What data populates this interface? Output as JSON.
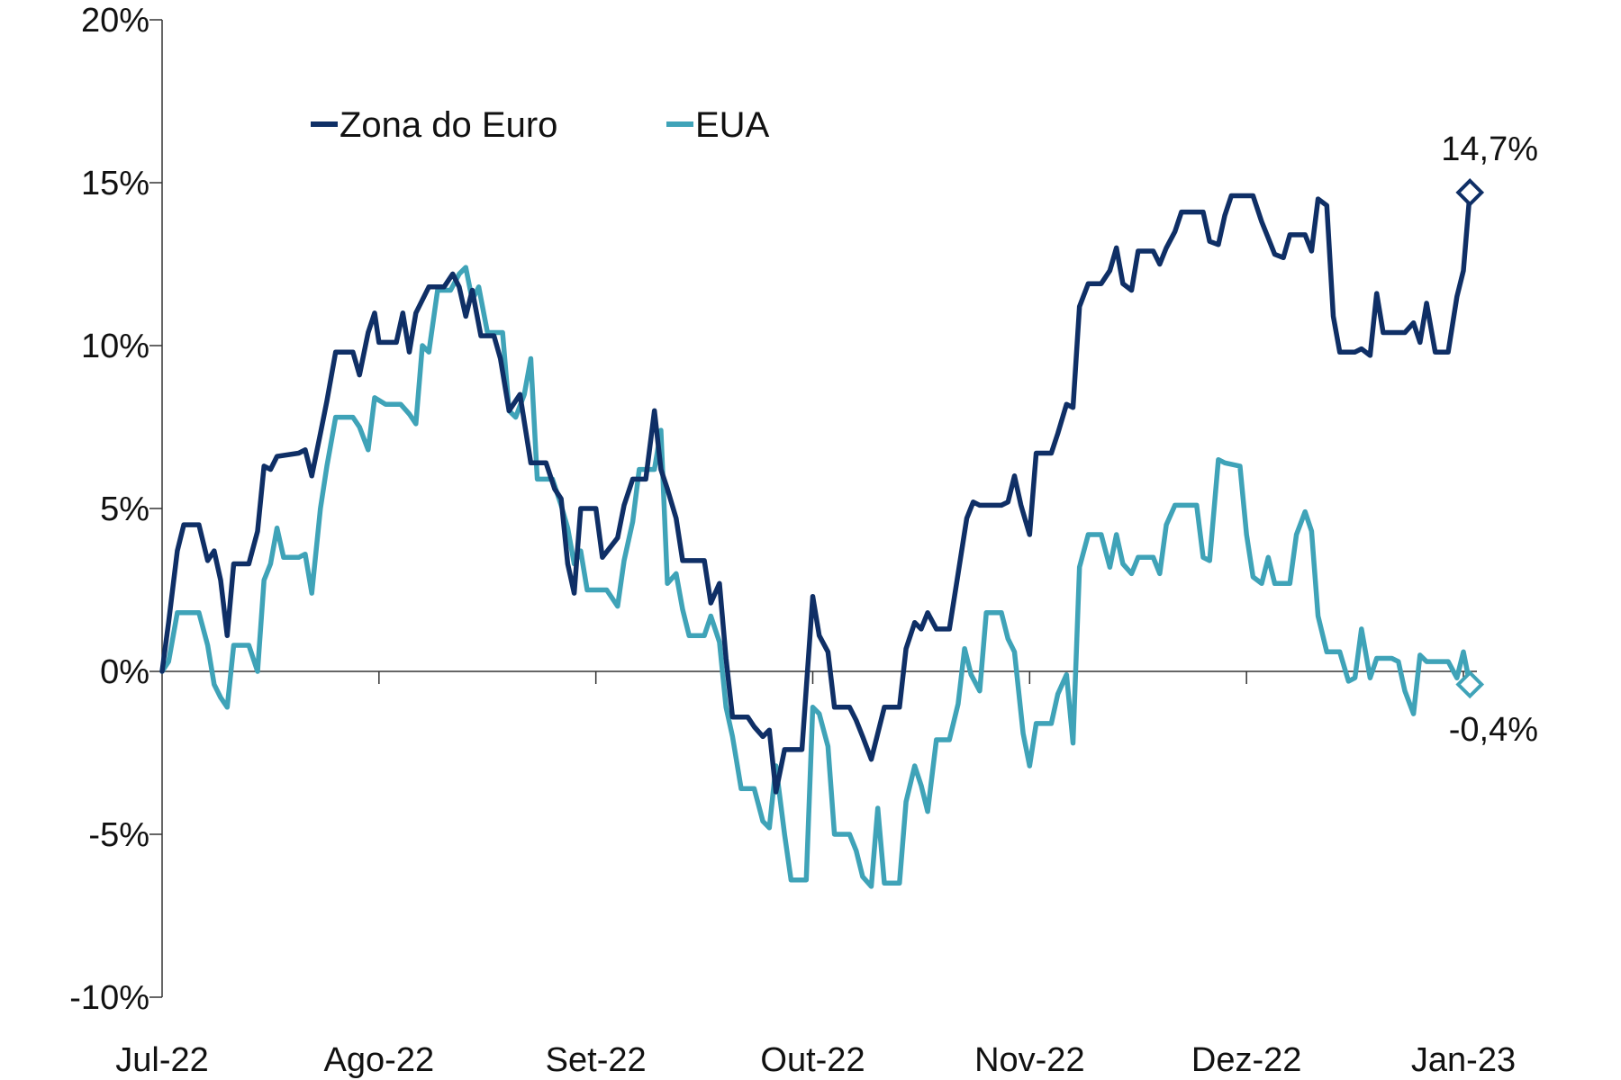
{
  "chart_data": {
    "type": "line",
    "title": "",
    "xlabel": "",
    "ylabel": "",
    "ylim": [
      -10,
      20
    ],
    "yticks": [
      20,
      15,
      10,
      5,
      0,
      -5,
      -10
    ],
    "ytick_labels": [
      "20%",
      "15%",
      "10%",
      "5%",
      "0%",
      "-5%",
      "-10%"
    ],
    "xtick_labels": [
      "Jul-22",
      "Ago-22",
      "Set-22",
      "Out-22",
      "Nov-22",
      "Dez-22",
      "Jan-23"
    ],
    "xtick_positions": [
      0,
      1,
      2,
      3,
      4,
      5,
      6
    ],
    "xlim": [
      0,
      6.25
    ],
    "grid": false,
    "legend_position": "top-left",
    "series": [
      {
        "name": "Zona do Euro",
        "color": "#0f2f66",
        "end_label": "14,7%",
        "points": [
          [
            0,
            0
          ],
          [
            0.03,
            1.5
          ],
          [
            0.07,
            3.7
          ],
          [
            0.1,
            4.5
          ],
          [
            0.17,
            4.5
          ],
          [
            0.21,
            3.4
          ],
          [
            0.24,
            3.7
          ],
          [
            0.27,
            2.8
          ],
          [
            0.3,
            1.1
          ],
          [
            0.33,
            3.3
          ],
          [
            0.4,
            3.3
          ],
          [
            0.44,
            4.3
          ],
          [
            0.47,
            6.3
          ],
          [
            0.5,
            6.2
          ],
          [
            0.53,
            6.6
          ],
          [
            0.63,
            6.7
          ],
          [
            0.66,
            6.8
          ],
          [
            0.69,
            6.0
          ],
          [
            0.73,
            7.3
          ],
          [
            0.76,
            8.3
          ],
          [
            0.8,
            9.8
          ],
          [
            0.88,
            9.8
          ],
          [
            0.91,
            9.1
          ],
          [
            0.95,
            10.4
          ],
          [
            0.98,
            11.0
          ],
          [
            1.0,
            10.1
          ],
          [
            1.08,
            10.1
          ],
          [
            1.11,
            11.0
          ],
          [
            1.14,
            9.8
          ],
          [
            1.17,
            11.0
          ],
          [
            1.23,
            11.8
          ],
          [
            1.3,
            11.8
          ],
          [
            1.34,
            12.2
          ],
          [
            1.37,
            11.8
          ],
          [
            1.4,
            10.9
          ],
          [
            1.43,
            11.7
          ],
          [
            1.47,
            10.3
          ],
          [
            1.53,
            10.3
          ],
          [
            1.56,
            9.6
          ],
          [
            1.6,
            8.0
          ],
          [
            1.65,
            8.5
          ],
          [
            1.7,
            6.4
          ],
          [
            1.77,
            6.4
          ],
          [
            1.81,
            5.6
          ],
          [
            1.84,
            5.3
          ],
          [
            1.87,
            3.3
          ],
          [
            1.9,
            2.4
          ],
          [
            1.93,
            5.0
          ],
          [
            2.0,
            5.0
          ],
          [
            2.03,
            3.5
          ],
          [
            2.1,
            4.1
          ],
          [
            2.13,
            5.1
          ],
          [
            2.17,
            5.9
          ],
          [
            2.23,
            5.9
          ],
          [
            2.27,
            8.0
          ],
          [
            2.3,
            6.2
          ],
          [
            2.33,
            5.6
          ],
          [
            2.37,
            4.7
          ],
          [
            2.4,
            3.4
          ],
          [
            2.5,
            3.4
          ],
          [
            2.53,
            2.1
          ],
          [
            2.57,
            2.7
          ],
          [
            2.6,
            0.4
          ],
          [
            2.63,
            -1.4
          ],
          [
            2.7,
            -1.4
          ],
          [
            2.73,
            -1.7
          ],
          [
            2.77,
            -2.0
          ],
          [
            2.8,
            -1.8
          ],
          [
            2.83,
            -3.7
          ],
          [
            2.87,
            -2.4
          ],
          [
            2.95,
            -2.4
          ],
          [
            3.0,
            2.3
          ],
          [
            3.03,
            1.1
          ],
          [
            3.07,
            0.6
          ],
          [
            3.1,
            -1.1
          ],
          [
            3.17,
            -1.1
          ],
          [
            3.2,
            -1.5
          ],
          [
            3.23,
            -2.0
          ],
          [
            3.27,
            -2.7
          ],
          [
            3.33,
            -1.1
          ],
          [
            3.4,
            -1.1
          ],
          [
            3.43,
            0.7
          ],
          [
            3.47,
            1.5
          ],
          [
            3.5,
            1.3
          ],
          [
            3.53,
            1.8
          ],
          [
            3.57,
            1.3
          ],
          [
            3.63,
            1.3
          ],
          [
            3.67,
            3.0
          ],
          [
            3.71,
            4.7
          ],
          [
            3.74,
            5.2
          ],
          [
            3.77,
            5.1
          ],
          [
            3.87,
            5.1
          ],
          [
            3.9,
            5.2
          ],
          [
            3.93,
            6.0
          ],
          [
            3.96,
            5.1
          ],
          [
            4.0,
            4.2
          ],
          [
            4.03,
            6.7
          ],
          [
            4.1,
            6.7
          ],
          [
            4.13,
            7.3
          ],
          [
            4.17,
            8.2
          ],
          [
            4.2,
            8.1
          ],
          [
            4.23,
            11.2
          ],
          [
            4.27,
            11.9
          ],
          [
            4.33,
            11.9
          ],
          [
            4.37,
            12.3
          ],
          [
            4.4,
            13.0
          ],
          [
            4.43,
            11.9
          ],
          [
            4.47,
            11.7
          ],
          [
            4.5,
            12.9
          ],
          [
            4.57,
            12.9
          ],
          [
            4.6,
            12.5
          ],
          [
            4.63,
            13.0
          ],
          [
            4.67,
            13.5
          ],
          [
            4.7,
            14.1
          ],
          [
            4.73,
            14.1
          ],
          [
            4.8,
            14.1
          ],
          [
            4.83,
            13.2
          ],
          [
            4.87,
            13.1
          ],
          [
            4.9,
            14.0
          ],
          [
            4.93,
            14.6
          ],
          [
            5.03,
            14.6
          ],
          [
            5.07,
            13.8
          ],
          [
            5.1,
            13.3
          ],
          [
            5.13,
            12.8
          ],
          [
            5.17,
            12.7
          ],
          [
            5.2,
            13.4
          ],
          [
            5.27,
            13.4
          ],
          [
            5.3,
            12.9
          ],
          [
            5.33,
            14.5
          ],
          [
            5.37,
            14.3
          ],
          [
            5.4,
            10.9
          ],
          [
            5.43,
            9.8
          ],
          [
            5.5,
            9.8
          ],
          [
            5.53,
            9.9
          ],
          [
            5.57,
            9.7
          ],
          [
            5.6,
            11.6
          ],
          [
            5.63,
            10.4
          ],
          [
            5.73,
            10.4
          ],
          [
            5.77,
            10.7
          ],
          [
            5.8,
            10.1
          ],
          [
            5.83,
            11.3
          ],
          [
            5.87,
            9.8
          ],
          [
            5.93,
            9.8
          ],
          [
            5.97,
            11.5
          ],
          [
            6.0,
            12.3
          ],
          [
            6.03,
            14.7
          ]
        ]
      },
      {
        "name": "EUA",
        "color": "#3fa3b8",
        "end_label": "-0,4%",
        "points": [
          [
            0,
            0
          ],
          [
            0.03,
            0.3
          ],
          [
            0.07,
            1.8
          ],
          [
            0.1,
            1.8
          ],
          [
            0.17,
            1.8
          ],
          [
            0.21,
            0.8
          ],
          [
            0.24,
            -0.4
          ],
          [
            0.27,
            -0.8
          ],
          [
            0.3,
            -1.1
          ],
          [
            0.33,
            0.8
          ],
          [
            0.4,
            0.8
          ],
          [
            0.44,
            0.0
          ],
          [
            0.47,
            2.8
          ],
          [
            0.5,
            3.3
          ],
          [
            0.53,
            4.4
          ],
          [
            0.56,
            3.5
          ],
          [
            0.63,
            3.5
          ],
          [
            0.66,
            3.6
          ],
          [
            0.69,
            2.4
          ],
          [
            0.73,
            5.0
          ],
          [
            0.76,
            6.3
          ],
          [
            0.8,
            7.8
          ],
          [
            0.88,
            7.8
          ],
          [
            0.91,
            7.5
          ],
          [
            0.95,
            6.8
          ],
          [
            0.98,
            8.4
          ],
          [
            1.03,
            8.2
          ],
          [
            1.1,
            8.2
          ],
          [
            1.14,
            7.9
          ],
          [
            1.17,
            7.6
          ],
          [
            1.2,
            10.0
          ],
          [
            1.23,
            9.8
          ],
          [
            1.27,
            11.7
          ],
          [
            1.33,
            11.7
          ],
          [
            1.37,
            12.2
          ],
          [
            1.4,
            12.4
          ],
          [
            1.43,
            11.4
          ],
          [
            1.46,
            11.8
          ],
          [
            1.5,
            10.4
          ],
          [
            1.57,
            10.4
          ],
          [
            1.6,
            8.0
          ],
          [
            1.63,
            7.8
          ],
          [
            1.67,
            8.5
          ],
          [
            1.7,
            9.6
          ],
          [
            1.73,
            5.9
          ],
          [
            1.8,
            5.9
          ],
          [
            1.84,
            5.1
          ],
          [
            1.87,
            4.4
          ],
          [
            1.9,
            3.3
          ],
          [
            1.93,
            3.7
          ],
          [
            1.96,
            2.5
          ],
          [
            2.05,
            2.5
          ],
          [
            2.1,
            2.0
          ],
          [
            2.13,
            3.4
          ],
          [
            2.17,
            4.6
          ],
          [
            2.2,
            6.2
          ],
          [
            2.27,
            6.2
          ],
          [
            2.3,
            7.4
          ],
          [
            2.33,
            2.7
          ],
          [
            2.37,
            3.0
          ],
          [
            2.4,
            1.9
          ],
          [
            2.43,
            1.1
          ],
          [
            2.5,
            1.1
          ],
          [
            2.53,
            1.7
          ],
          [
            2.57,
            0.9
          ],
          [
            2.6,
            -1.1
          ],
          [
            2.63,
            -2.0
          ],
          [
            2.67,
            -3.6
          ],
          [
            2.73,
            -3.6
          ],
          [
            2.77,
            -4.6
          ],
          [
            2.8,
            -4.8
          ],
          [
            2.83,
            -2.9
          ],
          [
            2.87,
            -5.0
          ],
          [
            2.9,
            -6.4
          ],
          [
            2.97,
            -6.4
          ],
          [
            3.0,
            -1.1
          ],
          [
            3.03,
            -1.3
          ],
          [
            3.07,
            -2.3
          ],
          [
            3.1,
            -5.0
          ],
          [
            3.17,
            -5.0
          ],
          [
            3.2,
            -5.5
          ],
          [
            3.23,
            -6.3
          ],
          [
            3.27,
            -6.6
          ],
          [
            3.3,
            -4.2
          ],
          [
            3.33,
            -6.5
          ],
          [
            3.4,
            -6.5
          ],
          [
            3.43,
            -4.0
          ],
          [
            3.47,
            -2.9
          ],
          [
            3.5,
            -3.5
          ],
          [
            3.53,
            -4.3
          ],
          [
            3.57,
            -2.1
          ],
          [
            3.63,
            -2.1
          ],
          [
            3.67,
            -1.0
          ],
          [
            3.7,
            0.7
          ],
          [
            3.73,
            -0.1
          ],
          [
            3.77,
            -0.6
          ],
          [
            3.8,
            1.8
          ],
          [
            3.87,
            1.8
          ],
          [
            3.9,
            1.0
          ],
          [
            3.93,
            0.6
          ],
          [
            3.97,
            -1.9
          ],
          [
            4.0,
            -2.9
          ],
          [
            4.03,
            -1.6
          ],
          [
            4.1,
            -1.6
          ],
          [
            4.13,
            -0.7
          ],
          [
            4.17,
            -0.1
          ],
          [
            4.2,
            -2.2
          ],
          [
            4.23,
            3.2
          ],
          [
            4.27,
            4.2
          ],
          [
            4.33,
            4.2
          ],
          [
            4.37,
            3.2
          ],
          [
            4.4,
            4.2
          ],
          [
            4.43,
            3.3
          ],
          [
            4.47,
            3.0
          ],
          [
            4.5,
            3.5
          ],
          [
            4.57,
            3.5
          ],
          [
            4.6,
            3.0
          ],
          [
            4.63,
            4.5
          ],
          [
            4.67,
            5.1
          ],
          [
            4.77,
            5.1
          ],
          [
            4.8,
            3.5
          ],
          [
            4.83,
            3.4
          ],
          [
            4.87,
            6.5
          ],
          [
            4.9,
            6.4
          ],
          [
            4.97,
            6.3
          ],
          [
            5.0,
            4.2
          ],
          [
            5.03,
            2.9
          ],
          [
            5.07,
            2.7
          ],
          [
            5.1,
            3.5
          ],
          [
            5.13,
            2.7
          ],
          [
            5.2,
            2.7
          ],
          [
            5.23,
            4.2
          ],
          [
            5.27,
            4.9
          ],
          [
            5.3,
            4.3
          ],
          [
            5.33,
            1.7
          ],
          [
            5.37,
            0.6
          ],
          [
            5.43,
            0.6
          ],
          [
            5.47,
            -0.3
          ],
          [
            5.5,
            -0.2
          ],
          [
            5.53,
            1.3
          ],
          [
            5.57,
            -0.2
          ],
          [
            5.6,
            0.4
          ],
          [
            5.67,
            0.4
          ],
          [
            5.7,
            0.3
          ],
          [
            5.73,
            -0.6
          ],
          [
            5.77,
            -1.3
          ],
          [
            5.8,
            0.5
          ],
          [
            5.83,
            0.3
          ],
          [
            5.9,
            0.3
          ],
          [
            5.93,
            0.3
          ],
          [
            5.97,
            -0.2
          ],
          [
            6.0,
            0.6
          ],
          [
            6.03,
            -0.4
          ]
        ]
      }
    ]
  }
}
